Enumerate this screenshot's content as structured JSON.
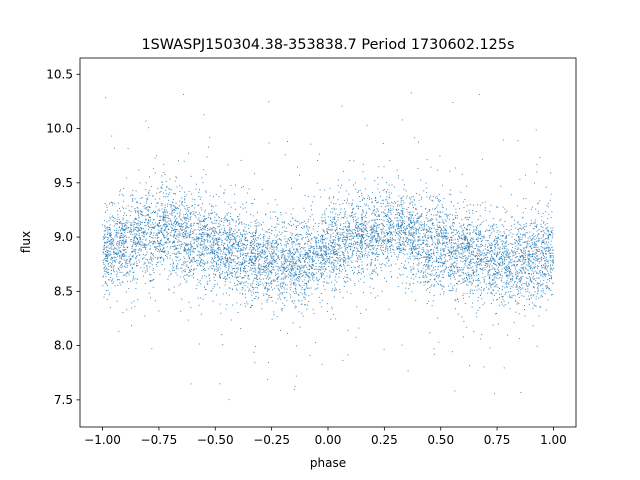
{
  "chart_data": {
    "type": "scatter",
    "title": "1SWASPJ150304.38-353838.7 Period 1730602.125s",
    "xlabel": "phase",
    "ylabel": "flux",
    "xlim": [
      -1.1,
      1.1
    ],
    "ylim": [
      7.25,
      10.65
    ],
    "x_ticks": [
      -1.0,
      -0.75,
      -0.5,
      -0.25,
      0.0,
      0.25,
      0.5,
      0.75,
      1.0
    ],
    "x_tick_labels": [
      "−1.00",
      "−0.75",
      "−0.50",
      "−0.25",
      "0.00",
      "0.25",
      "0.50",
      "0.75",
      "1.00"
    ],
    "y_ticks": [
      7.5,
      8.0,
      8.5,
      9.0,
      9.5,
      10.0,
      10.5
    ],
    "y_tick_labels": [
      "7.5",
      "8.0",
      "8.5",
      "9.0",
      "9.5",
      "10.0",
      "10.5"
    ],
    "grid": false,
    "legend": "none",
    "marker_color": "#1f77b4",
    "phase_range": [
      -1.0,
      1.0
    ],
    "flux_median": 8.9,
    "flux_range": [
      7.4,
      10.4
    ],
    "folded_profile": {
      "phase": [
        0.0,
        0.05,
        0.1,
        0.15,
        0.2,
        0.25,
        0.3,
        0.35,
        0.4,
        0.45,
        0.5,
        0.55,
        0.6,
        0.65,
        0.7,
        0.75,
        0.8,
        0.85,
        0.9,
        0.95,
        1.0
      ],
      "flux": [
        8.88,
        8.92,
        8.97,
        9.02,
        9.05,
        9.07,
        9.06,
        9.02,
        8.98,
        8.93,
        8.9,
        8.87,
        8.83,
        8.8,
        8.78,
        8.76,
        8.76,
        8.78,
        8.8,
        8.84,
        8.88
      ]
    }
  }
}
